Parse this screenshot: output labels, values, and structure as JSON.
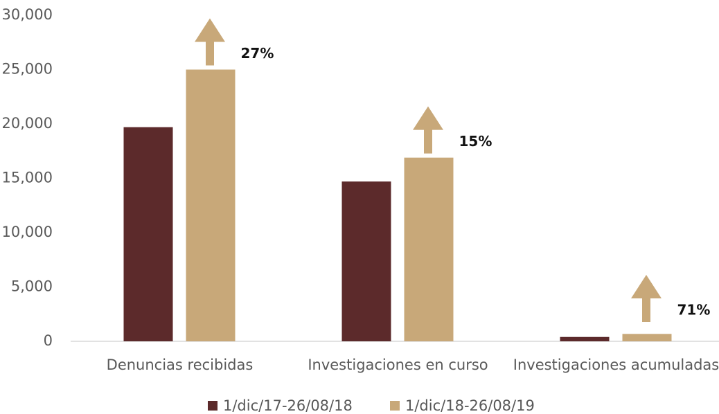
{
  "chart_data": {
    "type": "bar",
    "categories": [
      "Denuncias recibidas",
      "Investigaciones en curso",
      "Investigaciones acumuladas"
    ],
    "series": [
      {
        "name": "1/dic/17-26/08/18",
        "color": "#5c2a2b",
        "values": [
          19700,
          14700,
          400
        ]
      },
      {
        "name": "1/dic/18-26/08/19",
        "color": "#c8a879",
        "values": [
          25000,
          16900,
          680
        ]
      }
    ],
    "annotations": [
      "27%",
      "15%",
      "71%"
    ],
    "ylim": [
      0,
      30000
    ],
    "yticks": [
      0,
      {
        "value": 5000,
        "label": "5,000"
      },
      {
        "value": 10000,
        "label": "10,000"
      },
      {
        "value": 15000,
        "label": "15,000"
      },
      {
        "value": 20000,
        "label": "20,000"
      },
      {
        "value": 25000,
        "label": "25,000"
      },
      {
        "value": 30000,
        "label": "30,000"
      }
    ],
    "grid": false
  }
}
